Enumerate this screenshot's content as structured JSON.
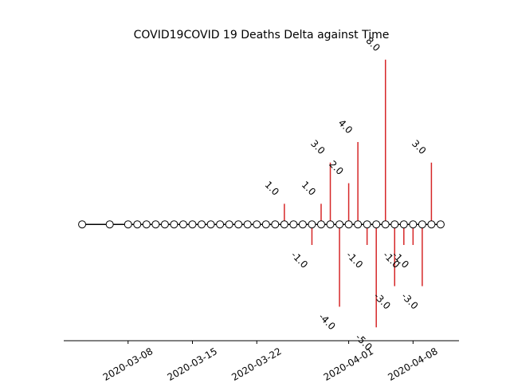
{
  "chart_data": {
    "type": "timeline",
    "title": "COVID19COVID 19 Deaths Delta against Time",
    "x": [
      "2020-03-03",
      "2020-03-06",
      "2020-03-08",
      "2020-03-09",
      "2020-03-10",
      "2020-03-11",
      "2020-03-12",
      "2020-03-13",
      "2020-03-14",
      "2020-03-15",
      "2020-03-16",
      "2020-03-17",
      "2020-03-18",
      "2020-03-19",
      "2020-03-20",
      "2020-03-21",
      "2020-03-22",
      "2020-03-23",
      "2020-03-24",
      "2020-03-25",
      "2020-03-26",
      "2020-03-27",
      "2020-03-28",
      "2020-03-29",
      "2020-03-30",
      "2020-03-31",
      "2020-04-01",
      "2020-04-02",
      "2020-04-03",
      "2020-04-04",
      "2020-04-05",
      "2020-04-06",
      "2020-04-07",
      "2020-04-08",
      "2020-04-09",
      "2020-04-10",
      "2020-04-11"
    ],
    "values": [
      0,
      0,
      0,
      0,
      0,
      0,
      0,
      0,
      0,
      0,
      0,
      0,
      0,
      0,
      0,
      0,
      0,
      0,
      0,
      1,
      0,
      0,
      -1,
      1,
      3,
      -4,
      2,
      4,
      -1,
      -5,
      8,
      -3,
      -1,
      -1,
      -3,
      3,
      0
    ],
    "value_labels": [
      null,
      null,
      null,
      null,
      null,
      null,
      null,
      null,
      null,
      null,
      null,
      null,
      null,
      null,
      null,
      null,
      null,
      null,
      null,
      "1.0",
      null,
      null,
      "-1.0",
      "1.0",
      "3.0",
      "-4.0",
      "2.0",
      "4.0",
      "-1.0",
      "-5.0",
      "8.0",
      "-3.0",
      "-1.0",
      "-1.0",
      "-3.0",
      "3.0",
      null
    ],
    "stem_color": "#d62728",
    "line_color": "#000000",
    "xlim": [
      "2020-03-01",
      "2020-04-13"
    ],
    "xticks": [
      "2020-03-08",
      "2020-03-15",
      "2020-03-22",
      "2020-04-01",
      "2020-04-08"
    ],
    "ylim": [
      -5.65,
      8.65
    ]
  }
}
